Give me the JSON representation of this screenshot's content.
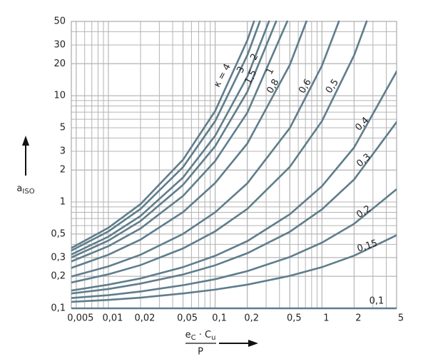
{
  "chart_data": {
    "type": "line",
    "log_x": true,
    "log_y": true,
    "grid": true,
    "minor_grid": true,
    "color": "#5f7d8c",
    "x_label_numerator": [
      {
        "text": "e"
      },
      {
        "sub": "C"
      },
      {
        "text": " · C"
      },
      {
        "sub": "u"
      }
    ],
    "x_label_denominator": "P",
    "y_label": [
      {
        "text": "a"
      },
      {
        "sub": "ISO"
      }
    ],
    "xlim": [
      0.0045,
      5
    ],
    "ylim": [
      0.1,
      50
    ],
    "xticks": [
      {
        "value": 0.005,
        "label": "0,005"
      },
      {
        "value": 0.01,
        "label": "0,01"
      },
      {
        "value": 0.02,
        "label": "0,02"
      },
      {
        "value": 0.05,
        "label": "0,05"
      },
      {
        "value": 0.1,
        "label": "0,1"
      },
      {
        "value": 0.2,
        "label": "0,2"
      },
      {
        "value": 0.5,
        "label": "0,5"
      },
      1,
      2,
      5
    ],
    "yticks": [
      {
        "value": 0.1,
        "label": "0,1"
      },
      {
        "value": 0.2,
        "label": "0,2"
      },
      {
        "value": 0.3,
        "label": "0,3"
      },
      {
        "value": 0.5,
        "label": "0,5"
      },
      1,
      2,
      3,
      5,
      10,
      20,
      30,
      50
    ],
    "series": [
      {
        "name": "κ = 4",
        "x": [
          0.0045,
          0.01,
          0.02,
          0.05,
          0.1,
          0.2,
          0.231
        ],
        "values": [
          0.369,
          0.572,
          0.956,
          2.5,
          7.19,
          33.2,
          50
        ]
      },
      {
        "name": "3",
        "x": [
          0.0045,
          0.01,
          0.02,
          0.05,
          0.1,
          0.2,
          0.262
        ],
        "values": [
          0.349,
          0.529,
          0.861,
          2.13,
          5.77,
          24.0,
          50
        ]
      },
      {
        "name": "2",
        "x": [
          0.0045,
          0.01,
          0.02,
          0.05,
          0.1,
          0.2,
          0.319
        ],
        "values": [
          0.321,
          0.472,
          0.739,
          1.7,
          4.2,
          15.1,
          50
        ]
      },
      {
        "name": "1,5",
        "x": [
          0.0045,
          0.01,
          0.02,
          0.05,
          0.1,
          0.2,
          0.372
        ],
        "values": [
          0.301,
          0.434,
          0.662,
          1.45,
          3.35,
          10.9,
          50
        ]
      },
      {
        "name": "1",
        "x": [
          0.0045,
          0.01,
          0.02,
          0.05,
          0.1,
          0.2,
          0.473
        ],
        "values": [
          0.276,
          0.384,
          0.564,
          1.14,
          2.43,
          6.92,
          50
        ]
      },
      {
        "name": "0,8",
        "x": [
          0.0045,
          0.01,
          0.02,
          0.05,
          0.1,
          0.2,
          0.5,
          0.715
        ],
        "values": [
          0.24,
          0.319,
          0.443,
          0.804,
          1.51,
          3.55,
          19.5,
          50
        ]
      },
      {
        "name": "0,6",
        "x": [
          0.0045,
          0.01,
          0.02,
          0.05,
          0.1,
          0.2,
          0.5,
          1,
          1.44
        ],
        "values": [
          0.199,
          0.248,
          0.319,
          0.501,
          0.801,
          1.5,
          4.96,
          19.2,
          50
        ]
      },
      {
        "name": "0,5",
        "x": [
          0.0045,
          0.01,
          0.02,
          0.05,
          0.1,
          0.2,
          0.5,
          1,
          2,
          2.62
        ],
        "values": [
          0.175,
          0.209,
          0.255,
          0.366,
          0.53,
          0.862,
          2.14,
          5.78,
          24.0,
          50
        ]
      },
      {
        "name": "0,4",
        "x": [
          0.0045,
          0.01,
          0.02,
          0.05,
          0.1,
          0.2,
          0.5,
          1,
          2,
          5
        ],
        "values": [
          0.147,
          0.167,
          0.191,
          0.244,
          0.312,
          0.429,
          0.767,
          1.41,
          3.26,
          16.9
        ]
      },
      {
        "name": "0,3",
        "x": [
          0.0045,
          0.01,
          0.02,
          0.05,
          0.1,
          0.2,
          0.5,
          1,
          2,
          5
        ],
        "values": [
          0.138,
          0.152,
          0.171,
          0.208,
          0.254,
          0.33,
          0.525,
          0.853,
          1.63,
          5.65
        ]
      },
      {
        "name": "0,2",
        "x": [
          0.0045,
          0.01,
          0.02,
          0.05,
          0.1,
          0.2,
          0.5,
          1,
          2,
          5
        ],
        "values": [
          0.125,
          0.133,
          0.144,
          0.165,
          0.188,
          0.224,
          0.304,
          0.415,
          0.624,
          1.32
        ]
      },
      {
        "name": "0,15",
        "x": [
          0.0045,
          0.01,
          0.02,
          0.05,
          0.1,
          0.2,
          0.5,
          1,
          2,
          5
        ],
        "values": [
          0.115,
          0.12,
          0.126,
          0.138,
          0.15,
          0.167,
          0.202,
          0.244,
          0.313,
          0.487
        ]
      },
      {
        "name": "0,1",
        "x": [
          0.0045,
          5
        ],
        "values": [
          0.1,
          0.1
        ]
      }
    ]
  }
}
